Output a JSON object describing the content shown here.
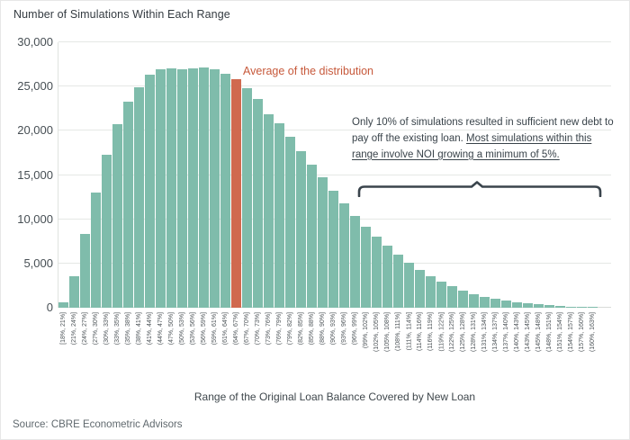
{
  "chart": {
    "title": "Number of Simulations Within Each Range",
    "x_axis_title": "Range of the Original Loan Balance Covered by New Loan",
    "source": "Source: CBRE Econometric Advisors",
    "avg_label": "Average of the distribution",
    "annotation": {
      "plain": "Only 10% of simulations resulted in sufficient new debt to pay off the existing loan. ",
      "underlined": "Most simulations within this range involve NOI growing a minimum of 5%."
    }
  },
  "chart_data": {
    "type": "bar",
    "title": "Number of Simulations Within Each Range",
    "xlabel": "Range of the Original Loan Balance Covered by New Loan",
    "ylabel": "",
    "ylim": [
      0,
      30000
    ],
    "grid": true,
    "legend": false,
    "y_ticks": [
      0,
      5000,
      10000,
      15000,
      20000,
      25000,
      30000
    ],
    "y_tick_labels": [
      "0",
      "5,000",
      "10,000",
      "15,000",
      "20,000",
      "25,000",
      "30,000"
    ],
    "categories": [
      "[18%, 21%]",
      "(21%, 24%]",
      "(24%, 27%]",
      "(27%, 30%]",
      "(30%, 33%]",
      "(33%, 35%]",
      "(35%, 38%]",
      "(38%, 41%]",
      "(41%, 44%]",
      "(44%, 47%]",
      "(47%, 50%]",
      "(50%, 53%]",
      "(53%, 56%]",
      "(56%, 59%]",
      "(59%, 61%]",
      "(61%, 64%]",
      "(64%, 67%]",
      "(67%, 70%]",
      "(70%, 73%]",
      "(73%, 76%]",
      "(76%, 79%]",
      "(79%, 82%]",
      "(82%, 85%]",
      "(85%, 88%]",
      "(88%, 90%]",
      "(90%, 93%]",
      "(93%, 96%]",
      "(96%, 99%]",
      "(99%, 102%]",
      "(102%, 105%]",
      "(105%, 108%]",
      "(108%, 111%]",
      "(111%, 114%]",
      "(114%, 116%]",
      "(116%, 119%]",
      "(119%, 122%]",
      "(122%, 125%]",
      "(125%, 128%]",
      "(128%, 131%]",
      "(131%, 134%]",
      "(134%, 137%]",
      "(137%, 140%]",
      "(140%, 143%]",
      "(143%, 145%]",
      "(145%, 148%]",
      "(148%, 151%]",
      "(151%, 154%]",
      "(154%, 157%]",
      "(157%, 160%]",
      "(160%, 163%]"
    ],
    "values": [
      600,
      3600,
      8300,
      13000,
      17300,
      20700,
      23300,
      24900,
      26300,
      26900,
      27100,
      27000,
      27100,
      27200,
      26900,
      26400,
      25800,
      24800,
      23600,
      21900,
      20800,
      19300,
      17700,
      16200,
      14700,
      13200,
      11800,
      10400,
      9200,
      8000,
      7000,
      6000,
      5100,
      4300,
      3600,
      2900,
      2400,
      1900,
      1500,
      1200,
      1000,
      800,
      650,
      500,
      380,
      280,
      200,
      150,
      90,
      50
    ],
    "highlight_index": 16,
    "highlight_label": "(64%, 67%]",
    "bar_color": "#7fbcab",
    "highlight_color": "#d0694f",
    "bracket_range": {
      "from": "(99%, 102%]",
      "to": "(160%, 163%]"
    }
  },
  "colors": {
    "accent_orange": "#c7593b",
    "teal_bar": "#7fbcab",
    "annotation_text": "#39434a",
    "bracket": "#3a444c",
    "gridline": "#e5e8e5"
  }
}
